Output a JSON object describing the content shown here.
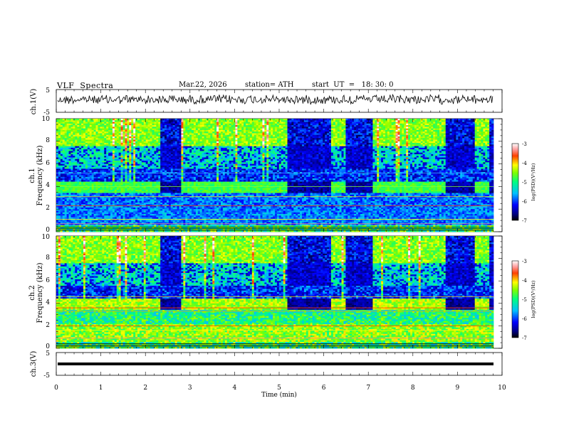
{
  "header": {
    "title": "VLF  Spectra",
    "date": "Mar.22, 2026",
    "station": "station= ATH",
    "start": "start  UT  =   18: 30: 0"
  },
  "chart_data": [
    {
      "id": "ch1-voltage",
      "type": "line",
      "ylabel": "ch.1(V)",
      "ylim": [
        -5,
        5
      ],
      "yticks": [
        "5",
        "-5"
      ],
      "xlim": [
        0,
        10
      ],
      "description_values": {
        "mean": 0,
        "noise_amplitude": 0.6
      }
    },
    {
      "id": "ch1-spectrogram",
      "type": "heatmap",
      "ylabel_channel": "ch.1",
      "ylabel": "Frequency  (kHz)",
      "ylim": [
        0,
        10
      ],
      "yticks": [
        "0",
        "2",
        "4",
        "6",
        "8",
        "10"
      ],
      "xlim": [
        0,
        10
      ],
      "colorbar": {
        "label": "log(PSD)(V²/Hz)",
        "range": [
          -7,
          -3
        ],
        "ticks": [
          "-3",
          "-4",
          "-5",
          "-6",
          "-7"
        ]
      },
      "quiet_intervals_min": [
        [
          2.35,
          2.8
        ],
        [
          5.2,
          6.15
        ],
        [
          6.5,
          7.1
        ],
        [
          8.75,
          9.4
        ],
        [
          9.7,
          9.8
        ]
      ]
    },
    {
      "id": "ch2-spectrogram",
      "type": "heatmap",
      "ylabel_channel": "ch.2",
      "ylabel": "Frequency  (kHz)",
      "ylim": [
        0,
        10
      ],
      "yticks": [
        "0",
        "2",
        "4",
        "6",
        "8",
        "10"
      ],
      "xlim": [
        0,
        10
      ],
      "colorbar": {
        "label": "log(PSD)(V²/Hz)",
        "range": [
          -7,
          -3
        ],
        "ticks": [
          "-3",
          "-4",
          "-5",
          "-6",
          "-7"
        ]
      },
      "quiet_intervals_min": [
        [
          2.35,
          2.8
        ],
        [
          5.2,
          6.15
        ],
        [
          6.5,
          7.1
        ],
        [
          8.75,
          9.4
        ],
        [
          9.7,
          9.8
        ]
      ]
    },
    {
      "id": "ch3-voltage",
      "type": "line",
      "ylabel": "ch.3(V)",
      "ylim": [
        -5,
        5
      ],
      "yticks": [
        "5",
        "-5"
      ],
      "xlim": [
        0,
        10
      ],
      "xlabel": "Time  (min)",
      "xticks": [
        "0",
        "1",
        "2",
        "3",
        "4",
        "5",
        "6",
        "7",
        "8",
        "9",
        "10"
      ],
      "description_values": {
        "constant_value": 0
      }
    }
  ]
}
